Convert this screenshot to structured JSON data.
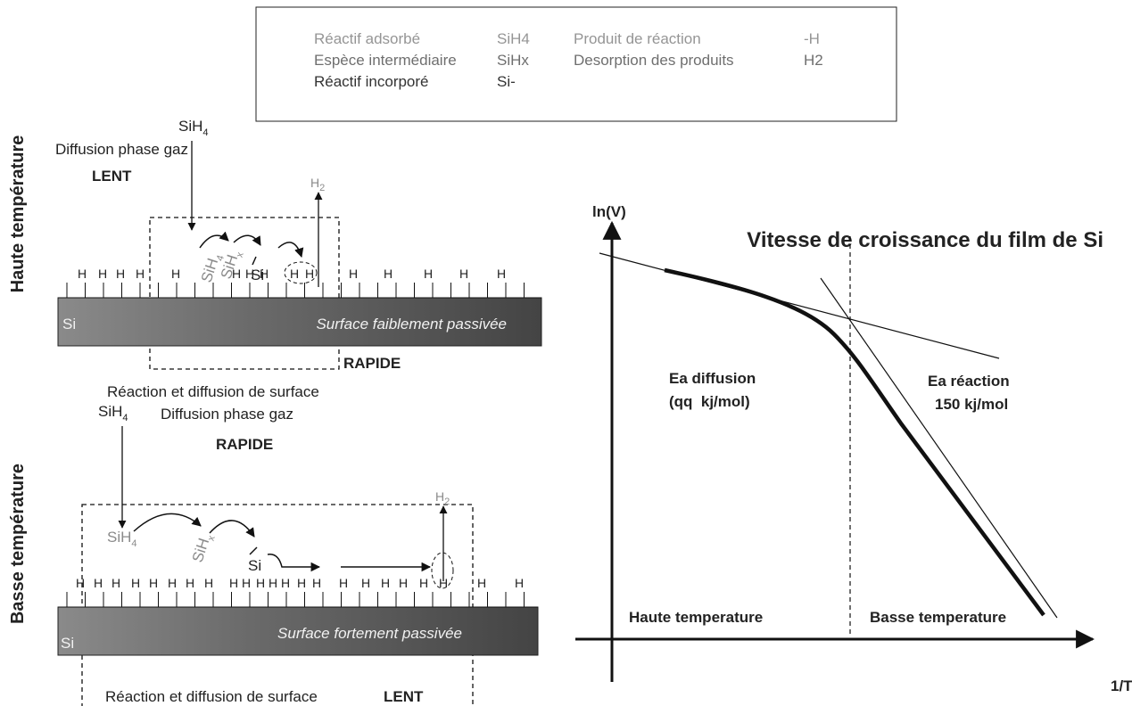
{
  "legend": {
    "rows": [
      [
        "Réactif adsorbé",
        "SiH4",
        "Produit de réaction",
        "-H"
      ],
      [
        "Espèce intermédiaire",
        "SiHx",
        "Desorption des produits",
        "H2"
      ],
      [
        "Réactif incorporé",
        "Si-"
      ]
    ]
  },
  "high_temp": {
    "title": "Haute température",
    "gas": {
      "base": "SiH",
      "sub": "4"
    },
    "diffusion": "Diffusion phase gaz",
    "speed_gas": "LENT",
    "product": {
      "base": "H",
      "sub": "2"
    },
    "adsorbed": {
      "base": "SiH",
      "sub": "4"
    },
    "intermediate": {
      "base": "SiH",
      "sub": "x"
    },
    "incorporated": "Si",
    "h": "H",
    "substrate": "Si",
    "surface": "Surface faiblement passivée",
    "speed_surface": "RAPIDE",
    "reaction": "Réaction et diffusion de surface"
  },
  "low_temp": {
    "title": "Basse température",
    "gas": {
      "base": "SiH",
      "sub": "4"
    },
    "diffusion": "Diffusion phase gaz",
    "speed_gas": "RAPIDE",
    "product": {
      "base": "H",
      "sub": "2"
    },
    "adsorbed": {
      "base": "SiH",
      "sub": "4"
    },
    "intermediate": {
      "base": "SiH",
      "sub": "x"
    },
    "incorporated": "Si",
    "h": "H",
    "substrate": "Si",
    "surface": "Surface fortement passivée",
    "speed_surface": "LENT",
    "reaction": "Réaction et diffusion de surface"
  },
  "chart": {
    "title": "Vitesse de croissance du film de Si",
    "y_axis": "ln(V)",
    "x_axis": "1/T",
    "ea_diffusion": "Ea diffusion",
    "ea_diffusion_value": "(qq  kj/mol)",
    "ea_reaction": "Ea réaction",
    "ea_reaction_value": "150 kj/mol",
    "high": "Haute temperature",
    "low": "Basse temperature"
  }
}
